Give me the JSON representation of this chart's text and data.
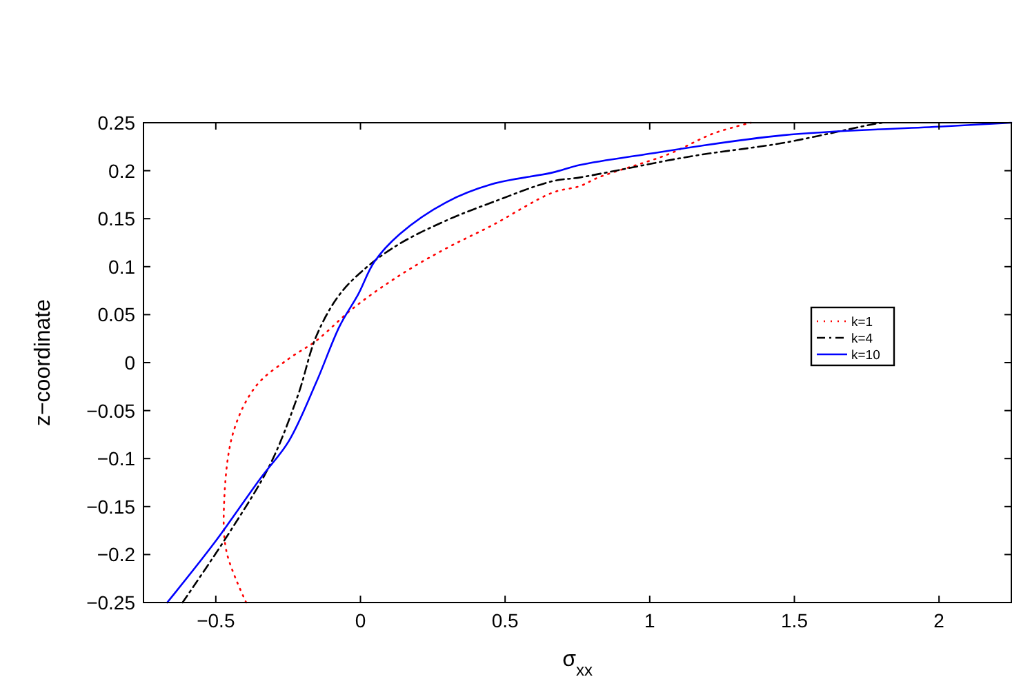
{
  "chart_data": {
    "type": "line",
    "xlabel": "σ$_{xx}$",
    "ylabel": "z−coordinate",
    "xlim": [
      -0.75,
      2.25
    ],
    "ylim": [
      -0.25,
      0.25
    ],
    "xticks": [
      {
        "value": -0.5,
        "label": "−0.5"
      },
      0,
      0.5,
      1,
      1.5,
      2
    ],
    "yticks": [
      {
        "value": -0.25,
        "label": "−0.25"
      },
      {
        "value": -0.2,
        "label": "−0.2"
      },
      {
        "value": -0.15,
        "label": "−0.15"
      },
      {
        "value": -0.1,
        "label": "−0.1"
      },
      {
        "value": -0.05,
        "label": "−0.05"
      },
      0,
      0.05,
      0.1,
      0.15,
      0.2,
      0.25
    ],
    "legend": "right",
    "grid": false,
    "series": [
      {
        "name": "k=1",
        "color": "#ff0000",
        "line_style": "dotted",
        "x": [
          -0.395,
          -0.463,
          -0.471,
          -0.439,
          -0.36,
          -0.248,
          -0.152,
          -0.024,
          0.136,
          0.296,
          0.455,
          0.663,
          0.759,
          0.823,
          1.063,
          1.222,
          1.35
        ],
        "values": [
          -0.25,
          -0.197,
          -0.144,
          -0.072,
          -0.024,
          0.004,
          0.023,
          0.057,
          0.091,
          0.119,
          0.143,
          0.177,
          0.184,
          0.193,
          0.217,
          0.239,
          0.25
        ]
      },
      {
        "name": "k=4",
        "color": "#000000",
        "line_style": "dashed",
        "x": [
          -0.615,
          -0.455,
          -0.312,
          -0.216,
          -0.152,
          -0.072,
          0.024,
          0.136,
          0.296,
          0.455,
          0.663,
          0.759,
          1.143,
          1.462,
          1.782,
          1.81
        ],
        "values": [
          -0.25,
          -0.178,
          -0.106,
          -0.034,
          0.028,
          0.071,
          0.1,
          0.124,
          0.148,
          0.167,
          0.189,
          0.193,
          0.215,
          0.229,
          0.249,
          0.25
        ]
      },
      {
        "name": "k=10",
        "color": "#0000ff",
        "line_style": "solid",
        "x": [
          -0.668,
          -0.503,
          -0.344,
          -0.248,
          -0.152,
          -0.072,
          -0.008,
          0.048,
          0.136,
          0.296,
          0.455,
          0.663,
          0.759,
          0.983,
          1.462,
          2.01,
          2.25
        ],
        "values": [
          -0.25,
          -0.187,
          -0.12,
          -0.082,
          -0.02,
          0.038,
          0.071,
          0.105,
          0.134,
          0.167,
          0.186,
          0.198,
          0.206,
          0.217,
          0.237,
          0.246,
          0.25
        ]
      }
    ]
  }
}
